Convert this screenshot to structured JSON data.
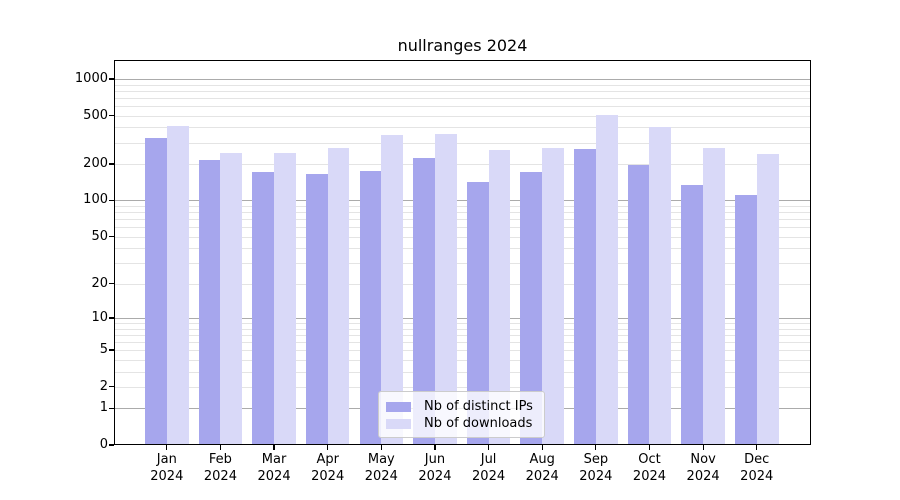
{
  "chart_data": {
    "type": "bar",
    "title": "nullranges 2024",
    "categories": [
      "Jan",
      "Feb",
      "Mar",
      "Apr",
      "May",
      "Jun",
      "Jul",
      "Aug",
      "Sep",
      "Oct",
      "Nov",
      "Dec"
    ],
    "year_label": "2024",
    "xlabel": "",
    "ylabel": "",
    "yscale": "log1p",
    "ylim": [
      0,
      1438
    ],
    "yticks": [
      0,
      1,
      2,
      5,
      10,
      20,
      50,
      100,
      200,
      500,
      1000
    ],
    "grid": "both",
    "legend_position": "lower center",
    "series": [
      {
        "name": "Nb of distinct IPs",
        "color": "#a6a6ed",
        "values": [
          325,
          214,
          172,
          165,
          174,
          225,
          142,
          171,
          265,
          196,
          134,
          111
        ]
      },
      {
        "name": "Nb of downloads",
        "color": "#d9d9f8",
        "values": [
          412,
          246,
          246,
          271,
          348,
          354,
          260,
          272,
          505,
          406,
          270,
          243
        ]
      }
    ]
  },
  "style_colors": {
    "major_grid": "#ababab",
    "minor_grid": "#e4e4e4",
    "spine": "#000000",
    "legend_border": "#cccccc"
  }
}
